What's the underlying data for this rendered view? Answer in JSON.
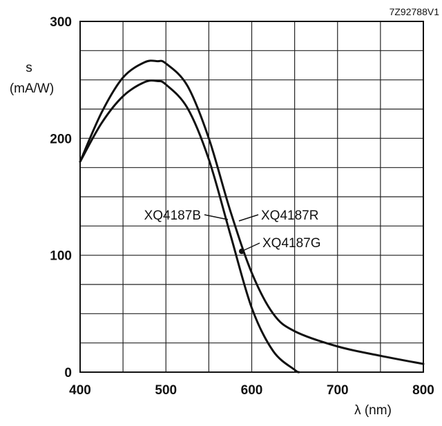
{
  "chart_data": {
    "type": "line",
    "figure_code": "7Z92788V1",
    "ylabel_symbol": "s",
    "ylabel_unit": "(mA/W)",
    "xlabel": "λ (nm)",
    "xlim": [
      400,
      800
    ],
    "ylim": [
      0,
      300
    ],
    "xticks": [
      400,
      500,
      600,
      700,
      800
    ],
    "yticks": [
      0,
      100,
      200,
      300
    ],
    "grid": true,
    "series": [
      {
        "name": "XQ4187B",
        "x": [
          400,
          425,
          450,
          475,
          490,
          500,
          525,
          550,
          575,
          600,
          625,
          650,
          655
        ],
        "y": [
          180,
          213,
          236,
          248,
          249,
          246,
          226,
          182,
          118,
          55,
          18,
          2,
          0
        ]
      },
      {
        "name": "XQ4187R",
        "x": [
          400,
          425,
          450,
          475,
          490,
          500,
          525,
          550,
          575,
          600,
          625,
          650,
          700,
          750,
          800
        ],
        "y": [
          180,
          222,
          252,
          265,
          266,
          264,
          245,
          200,
          138,
          85,
          50,
          35,
          22,
          14,
          7
        ]
      },
      {
        "name": "XQ4187G",
        "x": [],
        "y": []
      }
    ],
    "annotations": [
      {
        "text": "XQ4187B"
      },
      {
        "text": "XQ4187R"
      },
      {
        "text": "XQ4187G"
      }
    ]
  }
}
